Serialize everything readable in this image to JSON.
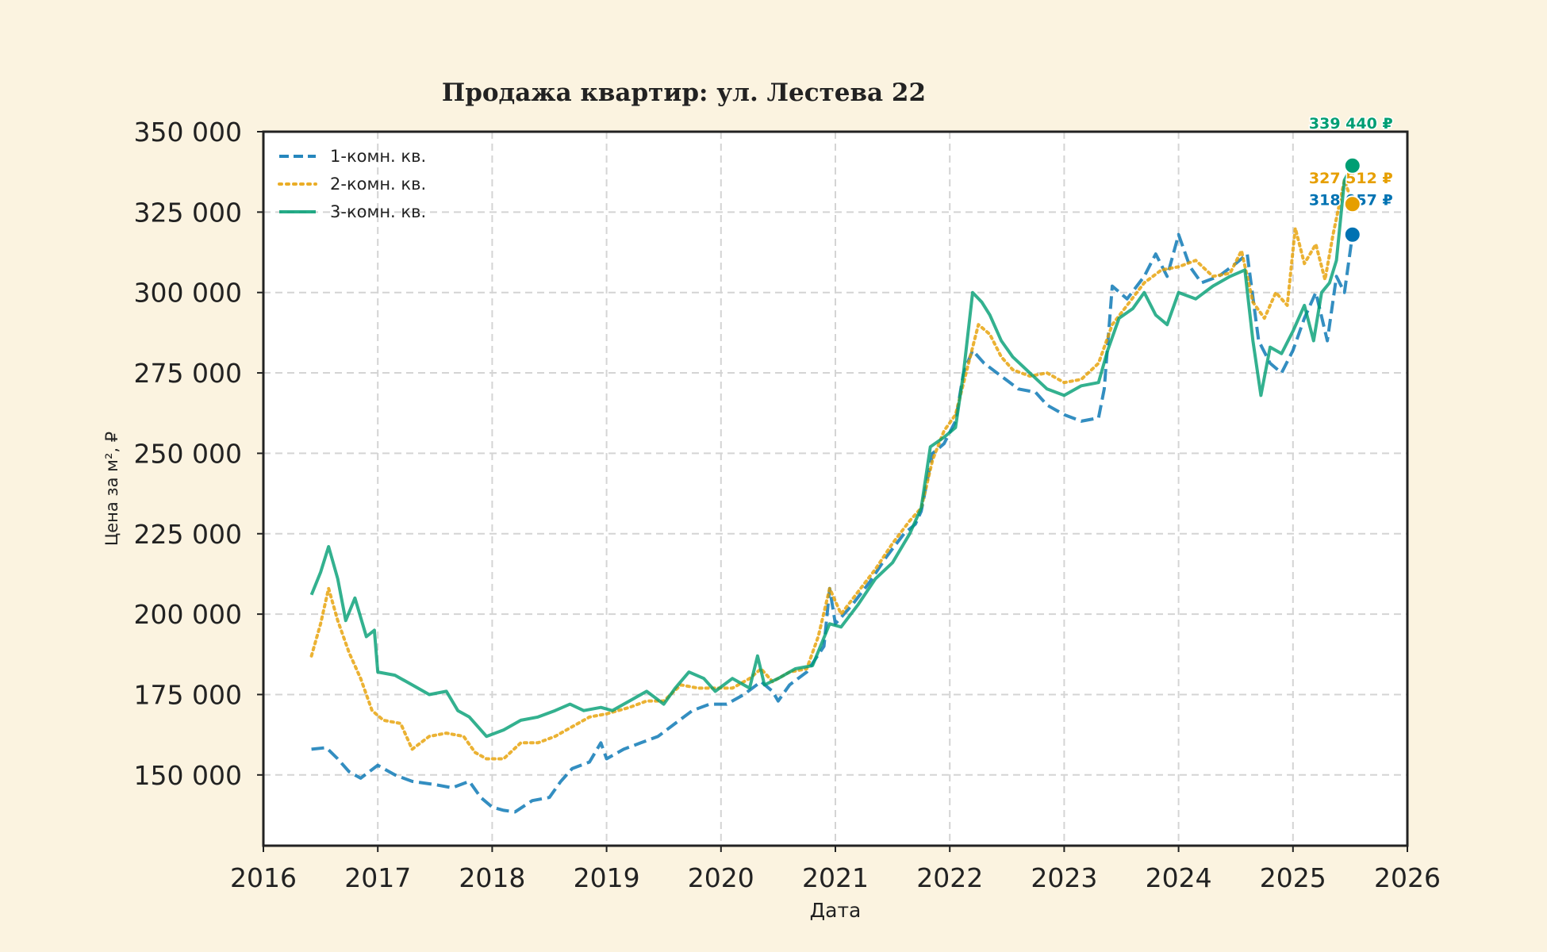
{
  "chart_data": {
    "type": "line",
    "title": "Продажа квартир: ул. Лестева 22",
    "xlabel": "Дата",
    "ylabel": "Цена за м², ₽",
    "xlim": [
      2016,
      2026
    ],
    "ylim": [
      128000,
      350000
    ],
    "x_ticks": [
      2016,
      2017,
      2018,
      2019,
      2020,
      2021,
      2022,
      2023,
      2024,
      2025,
      2026
    ],
    "x_tick_labels": [
      "2016",
      "2017",
      "2018",
      "2019",
      "2020",
      "2021",
      "2022",
      "2023",
      "2024",
      "2025",
      "2026"
    ],
    "y_ticks": [
      150000,
      175000,
      200000,
      225000,
      250000,
      275000,
      300000,
      325000,
      350000
    ],
    "y_tick_labels": [
      "150 000",
      "175 000",
      "200 000",
      "225 000",
      "250 000",
      "275 000",
      "300 000",
      "325 000",
      "350 000"
    ],
    "grid": true,
    "legend_position": "top-left",
    "series": [
      {
        "name": "1-комн. кв.",
        "color": "#0072B2",
        "style": "dashed",
        "last_value": 318057,
        "last_label": "318 057 ₽",
        "points": [
          [
            2016.42,
            158000
          ],
          [
            2016.55,
            158500
          ],
          [
            2016.65,
            155000
          ],
          [
            2016.75,
            151000
          ],
          [
            2016.85,
            149000
          ],
          [
            2017.0,
            153000
          ],
          [
            2017.15,
            150000
          ],
          [
            2017.3,
            148000
          ],
          [
            2017.5,
            147000
          ],
          [
            2017.65,
            146000
          ],
          [
            2017.8,
            148000
          ],
          [
            2017.9,
            143000
          ],
          [
            2018.0,
            140000
          ],
          [
            2018.1,
            139000
          ],
          [
            2018.2,
            138500
          ],
          [
            2018.35,
            142000
          ],
          [
            2018.5,
            143000
          ],
          [
            2018.6,
            148000
          ],
          [
            2018.7,
            152000
          ],
          [
            2018.85,
            154000
          ],
          [
            2018.95,
            160000
          ],
          [
            2019.0,
            155000
          ],
          [
            2019.15,
            158000
          ],
          [
            2019.3,
            160000
          ],
          [
            2019.45,
            162000
          ],
          [
            2019.6,
            166000
          ],
          [
            2019.75,
            170000
          ],
          [
            2019.9,
            172000
          ],
          [
            2020.05,
            172000
          ],
          [
            2020.2,
            175000
          ],
          [
            2020.35,
            179000
          ],
          [
            2020.45,
            176000
          ],
          [
            2020.5,
            173000
          ],
          [
            2020.6,
            178000
          ],
          [
            2020.75,
            182000
          ],
          [
            2020.9,
            190000
          ],
          [
            2020.95,
            208000
          ],
          [
            2021.0,
            197000
          ],
          [
            2021.15,
            203000
          ],
          [
            2021.3,
            210000
          ],
          [
            2021.45,
            218000
          ],
          [
            2021.6,
            225000
          ],
          [
            2021.7,
            228000
          ],
          [
            2021.75,
            232000
          ],
          [
            2021.85,
            250000
          ],
          [
            2021.95,
            253000
          ],
          [
            2022.05,
            260000
          ],
          [
            2022.12,
            275000
          ],
          [
            2022.2,
            282000
          ],
          [
            2022.3,
            278000
          ],
          [
            2022.45,
            274000
          ],
          [
            2022.6,
            270000
          ],
          [
            2022.75,
            269000
          ],
          [
            2022.85,
            265000
          ],
          [
            2023.0,
            262000
          ],
          [
            2023.15,
            260000
          ],
          [
            2023.3,
            261000
          ],
          [
            2023.35,
            270000
          ],
          [
            2023.42,
            302000
          ],
          [
            2023.55,
            298000
          ],
          [
            2023.7,
            305000
          ],
          [
            2023.8,
            312000
          ],
          [
            2023.9,
            305000
          ],
          [
            2024.0,
            318000
          ],
          [
            2024.1,
            308000
          ],
          [
            2024.2,
            303000
          ],
          [
            2024.35,
            305000
          ],
          [
            2024.5,
            309000
          ],
          [
            2024.6,
            312000
          ],
          [
            2024.7,
            285000
          ],
          [
            2024.8,
            278000
          ],
          [
            2024.9,
            275000
          ],
          [
            2025.0,
            282000
          ],
          [
            2025.1,
            292000
          ],
          [
            2025.2,
            300000
          ],
          [
            2025.3,
            285000
          ],
          [
            2025.38,
            305000
          ],
          [
            2025.45,
            300000
          ],
          [
            2025.52,
            318000
          ]
        ]
      },
      {
        "name": "2-комн. кв.",
        "color": "#E69F00",
        "style": "dotted",
        "last_value": 327512,
        "last_label": "327 512 ₽",
        "points": [
          [
            2016.42,
            187000
          ],
          [
            2016.5,
            197000
          ],
          [
            2016.57,
            208000
          ],
          [
            2016.65,
            198000
          ],
          [
            2016.75,
            188000
          ],
          [
            2016.85,
            180000
          ],
          [
            2016.95,
            170000
          ],
          [
            2017.05,
            167000
          ],
          [
            2017.2,
            166000
          ],
          [
            2017.3,
            158000
          ],
          [
            2017.45,
            162000
          ],
          [
            2017.6,
            163000
          ],
          [
            2017.75,
            162000
          ],
          [
            2017.85,
            157000
          ],
          [
            2017.95,
            155000
          ],
          [
            2018.1,
            155000
          ],
          [
            2018.25,
            160000
          ],
          [
            2018.4,
            160000
          ],
          [
            2018.55,
            162000
          ],
          [
            2018.7,
            165000
          ],
          [
            2018.85,
            168000
          ],
          [
            2019.0,
            169000
          ],
          [
            2019.2,
            171000
          ],
          [
            2019.35,
            173000
          ],
          [
            2019.5,
            173000
          ],
          [
            2019.65,
            178000
          ],
          [
            2019.8,
            177000
          ],
          [
            2019.95,
            177000
          ],
          [
            2020.1,
            177000
          ],
          [
            2020.25,
            180000
          ],
          [
            2020.35,
            183000
          ],
          [
            2020.45,
            179000
          ],
          [
            2020.6,
            182000
          ],
          [
            2020.75,
            183000
          ],
          [
            2020.85,
            193000
          ],
          [
            2020.95,
            208000
          ],
          [
            2021.05,
            200000
          ],
          [
            2021.2,
            207000
          ],
          [
            2021.35,
            214000
          ],
          [
            2021.5,
            222000
          ],
          [
            2021.65,
            229000
          ],
          [
            2021.75,
            233000
          ],
          [
            2021.85,
            248000
          ],
          [
            2021.95,
            257000
          ],
          [
            2022.05,
            262000
          ],
          [
            2022.15,
            276000
          ],
          [
            2022.25,
            290000
          ],
          [
            2022.35,
            287000
          ],
          [
            2022.45,
            280000
          ],
          [
            2022.55,
            276000
          ],
          [
            2022.7,
            274000
          ],
          [
            2022.85,
            275000
          ],
          [
            2023.0,
            272000
          ],
          [
            2023.15,
            273000
          ],
          [
            2023.3,
            278000
          ],
          [
            2023.42,
            290000
          ],
          [
            2023.55,
            296000
          ],
          [
            2023.7,
            303000
          ],
          [
            2023.85,
            307000
          ],
          [
            2024.0,
            308000
          ],
          [
            2024.15,
            310000
          ],
          [
            2024.3,
            305000
          ],
          [
            2024.45,
            306000
          ],
          [
            2024.55,
            313000
          ],
          [
            2024.65,
            297000
          ],
          [
            2024.75,
            292000
          ],
          [
            2024.85,
            300000
          ],
          [
            2024.95,
            296000
          ],
          [
            2025.02,
            320000
          ],
          [
            2025.1,
            309000
          ],
          [
            2025.2,
            315000
          ],
          [
            2025.28,
            304000
          ],
          [
            2025.35,
            318000
          ],
          [
            2025.45,
            335000
          ],
          [
            2025.52,
            327500
          ]
        ]
      },
      {
        "name": "3-комн. кв.",
        "color": "#009E73",
        "style": "solid",
        "last_value": 339440,
        "last_label": "339 440 ₽",
        "points": [
          [
            2016.42,
            206000
          ],
          [
            2016.5,
            213000
          ],
          [
            2016.57,
            221000
          ],
          [
            2016.65,
            211000
          ],
          [
            2016.72,
            198000
          ],
          [
            2016.8,
            205000
          ],
          [
            2016.9,
            193000
          ],
          [
            2016.97,
            195000
          ],
          [
            2017.0,
            182000
          ],
          [
            2017.15,
            181000
          ],
          [
            2017.3,
            178000
          ],
          [
            2017.45,
            175000
          ],
          [
            2017.6,
            176000
          ],
          [
            2017.7,
            170000
          ],
          [
            2017.8,
            168000
          ],
          [
            2017.95,
            162000
          ],
          [
            2018.1,
            164000
          ],
          [
            2018.25,
            167000
          ],
          [
            2018.4,
            168000
          ],
          [
            2018.55,
            170000
          ],
          [
            2018.68,
            172000
          ],
          [
            2018.8,
            170000
          ],
          [
            2018.95,
            171000
          ],
          [
            2019.05,
            170000
          ],
          [
            2019.2,
            173000
          ],
          [
            2019.35,
            176000
          ],
          [
            2019.5,
            172000
          ],
          [
            2019.6,
            177000
          ],
          [
            2019.72,
            182000
          ],
          [
            2019.85,
            180000
          ],
          [
            2019.95,
            176000
          ],
          [
            2020.1,
            180000
          ],
          [
            2020.25,
            177000
          ],
          [
            2020.32,
            187000
          ],
          [
            2020.38,
            178000
          ],
          [
            2020.5,
            180000
          ],
          [
            2020.65,
            183000
          ],
          [
            2020.8,
            184000
          ],
          [
            2020.95,
            197000
          ],
          [
            2021.05,
            196000
          ],
          [
            2021.2,
            203000
          ],
          [
            2021.35,
            211000
          ],
          [
            2021.5,
            216000
          ],
          [
            2021.65,
            225000
          ],
          [
            2021.75,
            233000
          ],
          [
            2021.83,
            252000
          ],
          [
            2021.95,
            255000
          ],
          [
            2022.05,
            258000
          ],
          [
            2022.12,
            275000
          ],
          [
            2022.2,
            300000
          ],
          [
            2022.28,
            297000
          ],
          [
            2022.35,
            293000
          ],
          [
            2022.45,
            285000
          ],
          [
            2022.55,
            280000
          ],
          [
            2022.7,
            275000
          ],
          [
            2022.85,
            270000
          ],
          [
            2023.0,
            268000
          ],
          [
            2023.15,
            271000
          ],
          [
            2023.3,
            272000
          ],
          [
            2023.38,
            282000
          ],
          [
            2023.48,
            292000
          ],
          [
            2023.6,
            295000
          ],
          [
            2023.7,
            300000
          ],
          [
            2023.8,
            293000
          ],
          [
            2023.9,
            290000
          ],
          [
            2024.0,
            300000
          ],
          [
            2024.15,
            298000
          ],
          [
            2024.3,
            302000
          ],
          [
            2024.45,
            305000
          ],
          [
            2024.58,
            307000
          ],
          [
            2024.65,
            285000
          ],
          [
            2024.72,
            268000
          ],
          [
            2024.8,
            283000
          ],
          [
            2024.9,
            281000
          ],
          [
            2025.0,
            288000
          ],
          [
            2025.1,
            296000
          ],
          [
            2025.18,
            285000
          ],
          [
            2025.25,
            300000
          ],
          [
            2025.32,
            303000
          ],
          [
            2025.38,
            310000
          ],
          [
            2025.45,
            335000
          ],
          [
            2025.52,
            339440
          ]
        ]
      }
    ]
  }
}
